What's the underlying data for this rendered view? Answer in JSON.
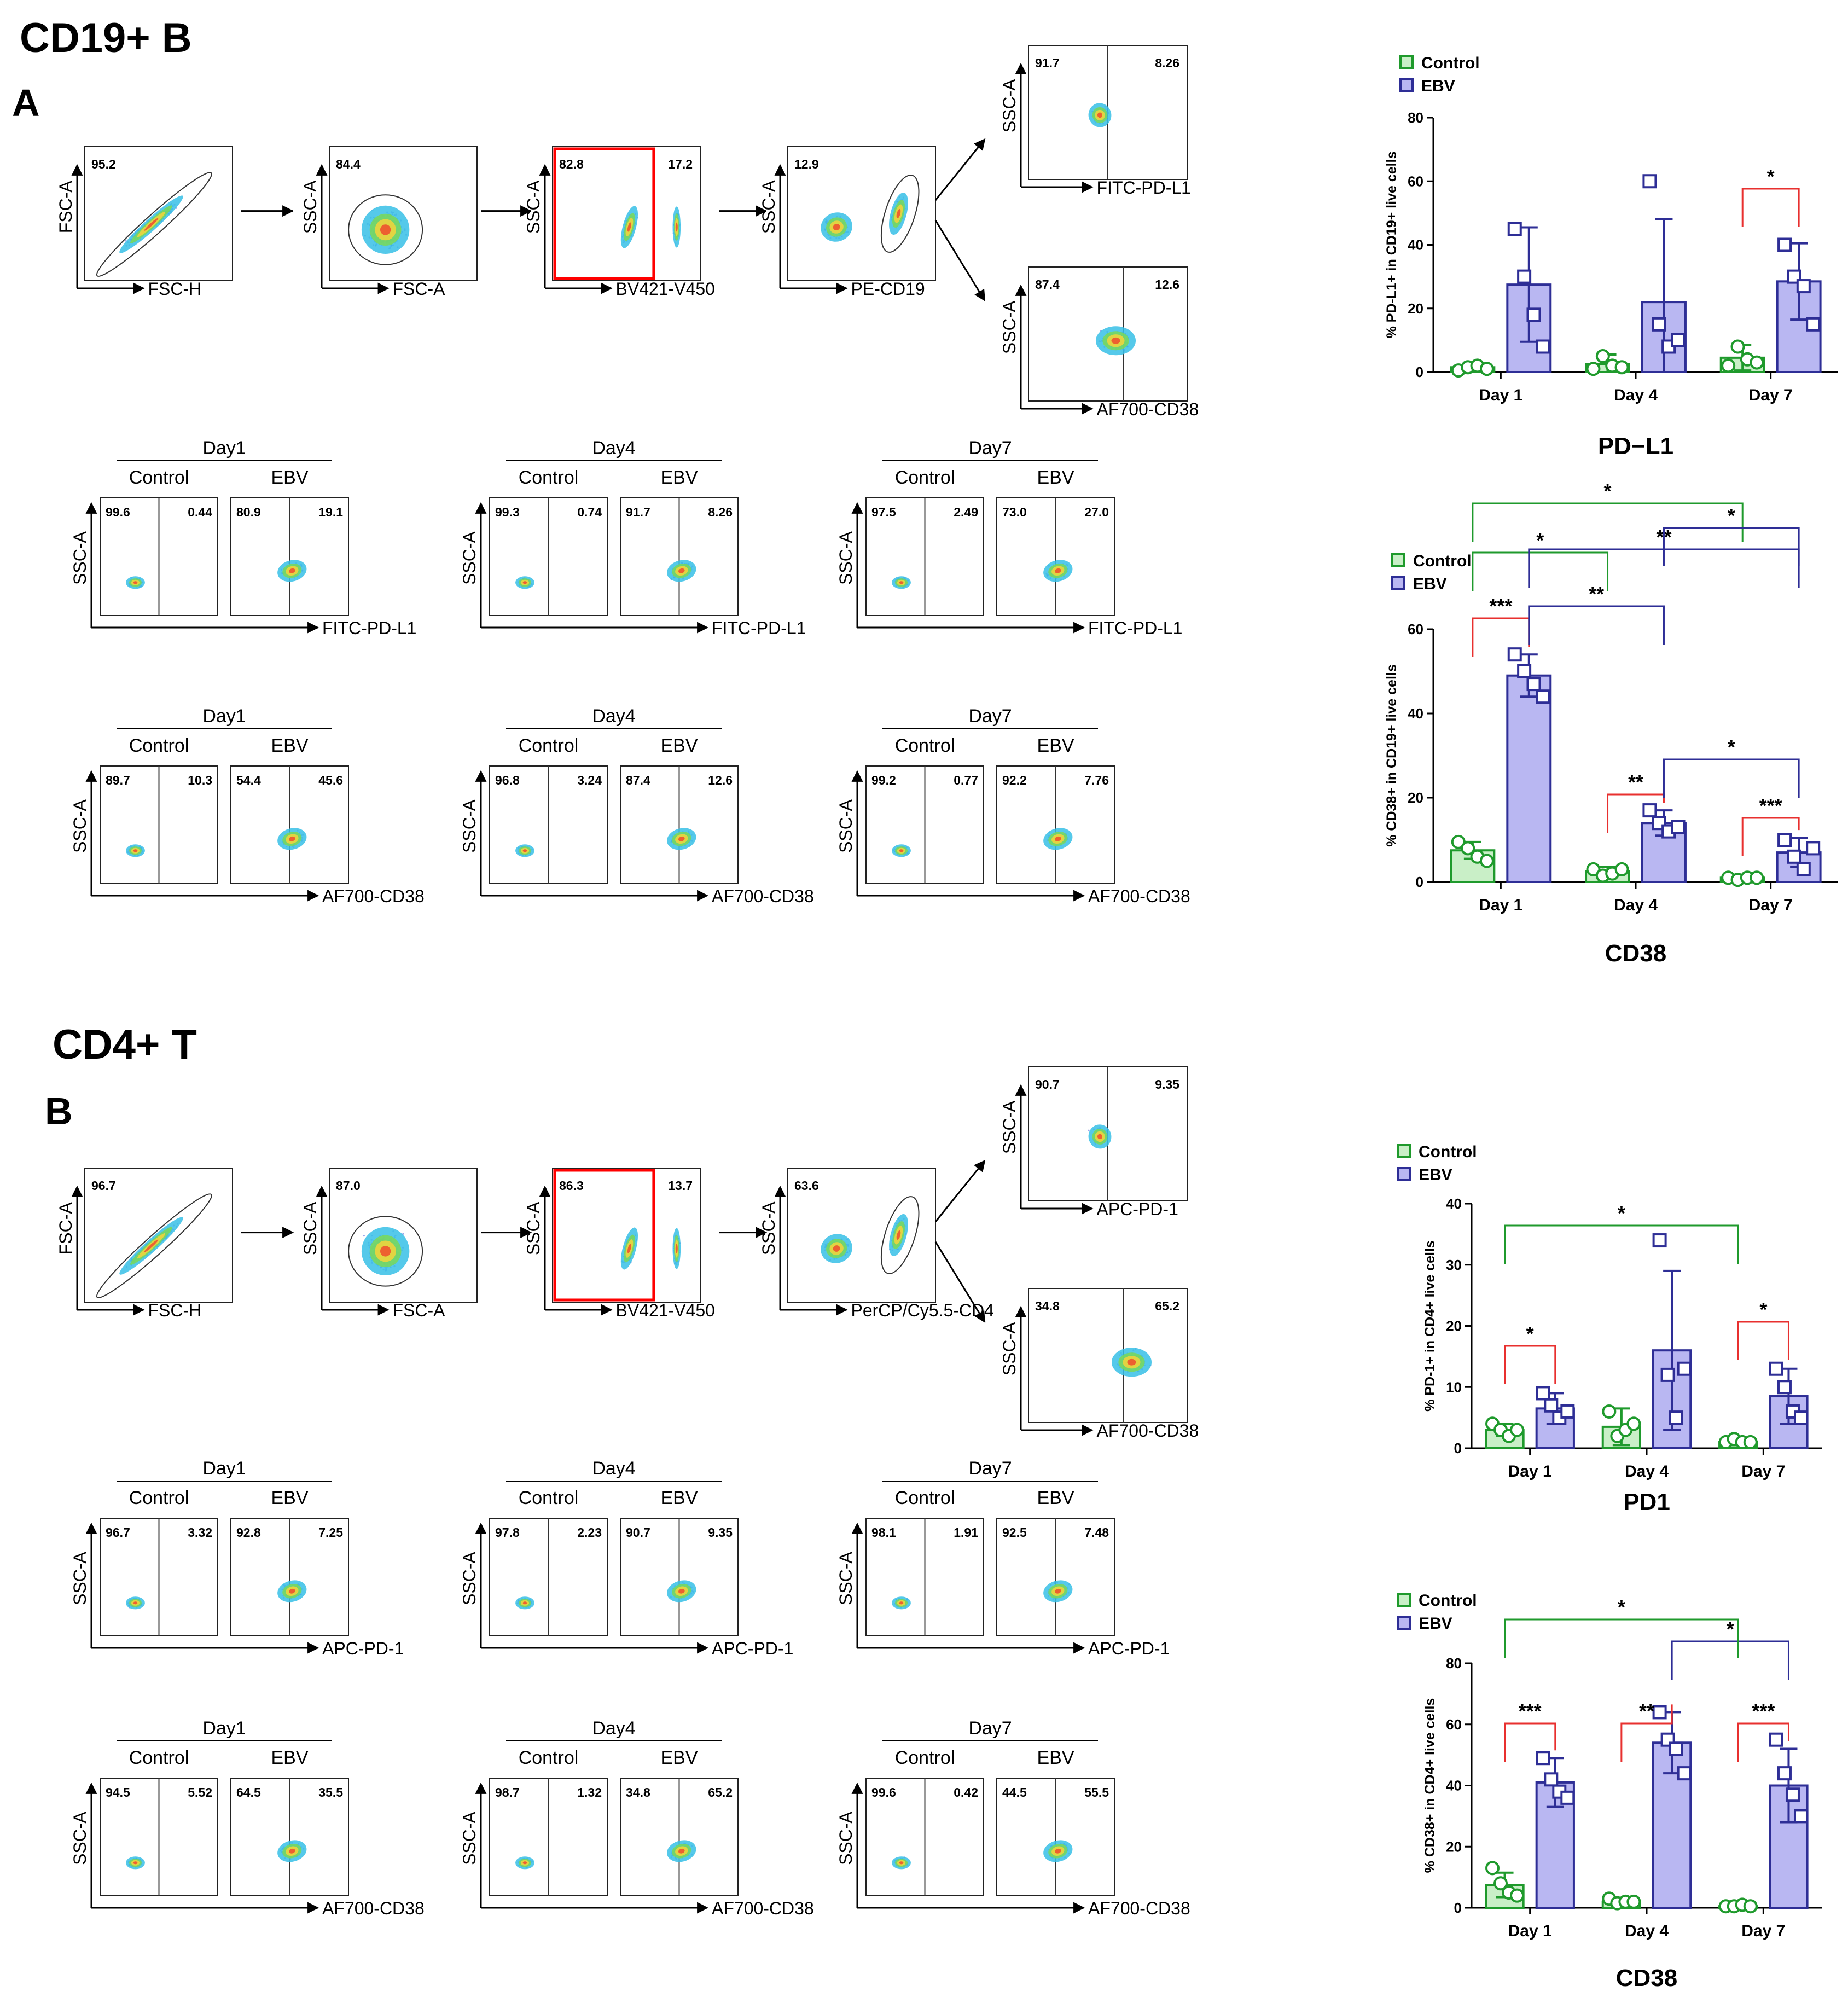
{
  "colors": {
    "control": "#1f9a2c",
    "ebv": "#2e2e96",
    "control_fill": "#c9efc7",
    "ebv_fill": "#b9b7f2",
    "sig_red": "#e8302f",
    "gate_red": "#ff0000"
  },
  "sections": [
    {
      "id": "A",
      "title": "CD19+ B",
      "label": "A"
    },
    {
      "id": "B",
      "title": "CD4+ T",
      "label": "B"
    }
  ],
  "gating": {
    "A": {
      "plots": [
        {
          "x_label": "FSC-H",
          "y_label": "FSC-A",
          "values": [
            "95.2"
          ]
        },
        {
          "x_label": "FSC-A",
          "y_label": "SSC-A",
          "values": [
            "84.4"
          ]
        },
        {
          "x_label": "BV421-V450",
          "y_label": "SSC-A",
          "values": [
            "82.8",
            "17.2"
          ]
        },
        {
          "x_label": "PE-CD19",
          "y_label": "SSC-A",
          "values": [
            "12.9"
          ]
        },
        {
          "x_label": "FITC-PD-L1",
          "y_label": "SSC-A",
          "values": [
            "91.7",
            "8.26"
          ]
        },
        {
          "x_label": "AF700-CD38",
          "y_label": "SSC-A",
          "values": [
            "87.4",
            "12.6"
          ]
        }
      ]
    },
    "B": {
      "plots": [
        {
          "x_label": "FSC-H",
          "y_label": "FSC-A",
          "values": [
            "96.7"
          ]
        },
        {
          "x_label": "FSC-A",
          "y_label": "SSC-A",
          "values": [
            "87.0"
          ]
        },
        {
          "x_label": "BV421-V450",
          "y_label": "SSC-A",
          "values": [
            "86.3",
            "13.7"
          ]
        },
        {
          "x_label": "PerCP/Cy5.5-CD4",
          "y_label": "SSC-A",
          "values": [
            "63.6"
          ]
        },
        {
          "x_label": "APC-PD-1",
          "y_label": "SSC-A",
          "values": [
            "90.7",
            "9.35"
          ]
        },
        {
          "x_label": "AF700-CD38",
          "y_label": "SSC-A",
          "values": [
            "34.8",
            "65.2"
          ]
        }
      ]
    }
  },
  "panel_rows": {
    "A": [
      {
        "x_label": "FITC-PD-L1",
        "y_label": "SSC-A",
        "days": [
          {
            "day": "Day1",
            "control": [
              "99.6",
              "0.44"
            ],
            "ebv": [
              "80.9",
              "19.1"
            ]
          },
          {
            "day": "Day4",
            "control": [
              "99.3",
              "0.74"
            ],
            "ebv": [
              "91.7",
              "8.26"
            ]
          },
          {
            "day": "Day7",
            "control": [
              "97.5",
              "2.49"
            ],
            "ebv": [
              "73.0",
              "27.0"
            ]
          }
        ]
      },
      {
        "x_label": "AF700-CD38",
        "y_label": "SSC-A",
        "days": [
          {
            "day": "Day1",
            "control": [
              "89.7",
              "10.3"
            ],
            "ebv": [
              "54.4",
              "45.6"
            ]
          },
          {
            "day": "Day4",
            "control": [
              "96.8",
              "3.24"
            ],
            "ebv": [
              "87.4",
              "12.6"
            ]
          },
          {
            "day": "Day7",
            "control": [
              "99.2",
              "0.77"
            ],
            "ebv": [
              "92.2",
              "7.76"
            ]
          }
        ]
      }
    ],
    "B": [
      {
        "x_label": "APC-PD-1",
        "y_label": "SSC-A",
        "days": [
          {
            "day": "Day1",
            "control": [
              "96.7",
              "3.32"
            ],
            "ebv": [
              "92.8",
              "7.25"
            ]
          },
          {
            "day": "Day4",
            "control": [
              "97.8",
              "2.23"
            ],
            "ebv": [
              "90.7",
              "9.35"
            ]
          },
          {
            "day": "Day7",
            "control": [
              "98.1",
              "1.91"
            ],
            "ebv": [
              "92.5",
              "7.48"
            ]
          }
        ]
      },
      {
        "x_label": "AF700-CD38",
        "y_label": "SSC-A",
        "days": [
          {
            "day": "Day1",
            "control": [
              "94.5",
              "5.52"
            ],
            "ebv": [
              "64.5",
              "35.5"
            ]
          },
          {
            "day": "Day4",
            "control": [
              "98.7",
              "1.32"
            ],
            "ebv": [
              "34.8",
              "65.2"
            ]
          },
          {
            "day": "Day7",
            "control": [
              "99.6",
              "0.42"
            ],
            "ebv": [
              "44.5",
              "55.5"
            ]
          }
        ]
      }
    ],
    "group_labels": {
      "control": "Control",
      "ebv": "EBV"
    }
  },
  "chart_data": [
    {
      "type": "bar",
      "title": "PD−L1",
      "ylabel": "% PD-L1+ in CD19+ live cells",
      "ylim": [
        0,
        80
      ],
      "yticks": [
        0,
        20,
        40,
        60,
        80
      ],
      "categories": [
        "Day 1",
        "Day 4",
        "Day 7"
      ],
      "legend": [
        "Control",
        "EBV"
      ],
      "series": [
        {
          "name": "Control",
          "values": [
            1.5,
            2.5,
            4.5
          ],
          "errors": [
            1,
            3,
            4
          ],
          "points": [
            [
              0.5,
              1.5,
              2,
              1
            ],
            [
              1,
              5,
              2,
              1.5
            ],
            [
              2,
              8,
              4,
              3
            ]
          ]
        },
        {
          "name": "EBV",
          "values": [
            27.5,
            22,
            28.5
          ],
          "errors": [
            18,
            26,
            12
          ],
          "points": [
            [
              45,
              30,
              18,
              8
            ],
            [
              60,
              15,
              8,
              10
            ],
            [
              40,
              30,
              27,
              15
            ]
          ]
        }
      ],
      "significance": [
        {
          "from": [
            2,
            "Control"
          ],
          "to": [
            2,
            "EBV"
          ],
          "label": "*",
          "color": "red"
        }
      ]
    },
    {
      "type": "bar",
      "title": "CD38",
      "ylabel": "% CD38+ in CD19+ live cells",
      "ylim": [
        0,
        60
      ],
      "yticks": [
        0,
        20,
        40,
        60
      ],
      "categories": [
        "Day 1",
        "Day 4",
        "Day 7"
      ],
      "legend": [
        "Control",
        "EBV"
      ],
      "series": [
        {
          "name": "Control",
          "values": [
            7.5,
            2.5,
            1
          ],
          "errors": [
            2,
            1,
            0.5
          ],
          "points": [
            [
              9.5,
              8,
              6,
              5
            ],
            [
              3,
              1.5,
              2,
              3
            ],
            [
              1,
              0.5,
              1,
              1
            ]
          ]
        },
        {
          "name": "EBV",
          "values": [
            49,
            14,
            7
          ],
          "errors": [
            5,
            3,
            3.5
          ],
          "points": [
            [
              54,
              50,
              47,
              44
            ],
            [
              17,
              14,
              12,
              13
            ],
            [
              10,
              6,
              3,
              8
            ]
          ]
        }
      ],
      "significance": [
        {
          "from": [
            0,
            "Control"
          ],
          "to": [
            0,
            "EBV"
          ],
          "label": "***",
          "color": "red"
        },
        {
          "from": [
            1,
            "Control"
          ],
          "to": [
            1,
            "EBV"
          ],
          "label": "**",
          "color": "red"
        },
        {
          "from": [
            2,
            "Control"
          ],
          "to": [
            2,
            "EBV"
          ],
          "label": "***",
          "color": "red"
        },
        {
          "from": [
            0,
            "EBV"
          ],
          "to": [
            1,
            "EBV"
          ],
          "label": "**",
          "color": "blue"
        },
        {
          "from": [
            1,
            "EBV"
          ],
          "to": [
            2,
            "EBV"
          ],
          "label": "*",
          "color": "blue"
        },
        {
          "from": [
            0,
            "Control"
          ],
          "to": [
            1,
            "Control"
          ],
          "label": "*",
          "color": "green"
        },
        {
          "from": [
            0,
            "Control"
          ],
          "to": [
            2,
            "Control"
          ],
          "label": "*",
          "color": "green"
        },
        {
          "from": [
            0,
            "EBV"
          ],
          "to": [
            2,
            "EBV"
          ],
          "label": "**",
          "color": "blue"
        },
        {
          "from": [
            1,
            "EBV"
          ],
          "to": [
            2,
            "EBV"
          ],
          "label": "*",
          "color": "blue"
        }
      ]
    },
    {
      "type": "bar",
      "title": "PD1",
      "ylabel": "% PD-1+ in CD4+ live cells",
      "ylim": [
        0,
        40
      ],
      "yticks": [
        0,
        10,
        20,
        30,
        40
      ],
      "categories": [
        "Day 1",
        "Day 4",
        "Day 7"
      ],
      "legend": [
        "Control",
        "EBV"
      ],
      "series": [
        {
          "name": "Control",
          "values": [
            3,
            3.5,
            1
          ],
          "errors": [
            1,
            3,
            0.5
          ],
          "points": [
            [
              4,
              3,
              2,
              3
            ],
            [
              6,
              2,
              3,
              4
            ],
            [
              1,
              1.5,
              1,
              1
            ]
          ]
        },
        {
          "name": "EBV",
          "values": [
            6.5,
            16,
            8.5
          ],
          "errors": [
            2.5,
            13,
            4.5
          ],
          "points": [
            [
              9,
              7,
              5,
              6
            ],
            [
              34,
              12,
              5,
              13
            ],
            [
              13,
              10,
              6,
              5
            ]
          ]
        }
      ],
      "significance": [
        {
          "from": [
            0,
            "Control"
          ],
          "to": [
            0,
            "EBV"
          ],
          "label": "*",
          "color": "red"
        },
        {
          "from": [
            2,
            "Control"
          ],
          "to": [
            2,
            "EBV"
          ],
          "label": "*",
          "color": "red"
        },
        {
          "from": [
            0,
            "Control"
          ],
          "to": [
            2,
            "Control"
          ],
          "label": "*",
          "color": "green"
        }
      ]
    },
    {
      "type": "bar",
      "title": "CD38",
      "ylabel": "% CD38+ in CD4+ live cells",
      "ylim": [
        0,
        80
      ],
      "yticks": [
        0,
        20,
        40,
        60,
        80
      ],
      "categories": [
        "Day 1",
        "Day 4",
        "Day 7"
      ],
      "legend": [
        "Control",
        "EBV"
      ],
      "series": [
        {
          "name": "Control",
          "values": [
            7.5,
            2,
            0.5
          ],
          "errors": [
            4,
            1,
            0.3
          ],
          "points": [
            [
              13,
              8,
              5,
              4
            ],
            [
              3,
              1.5,
              2,
              2
            ],
            [
              0.5,
              0.5,
              1,
              0.5
            ]
          ]
        },
        {
          "name": "EBV",
          "values": [
            41,
            54,
            40
          ],
          "errors": [
            8,
            10,
            12
          ],
          "points": [
            [
              49,
              42,
              38,
              36
            ],
            [
              64,
              55,
              52,
              44
            ],
            [
              55,
              44,
              37,
              30
            ]
          ]
        }
      ],
      "significance": [
        {
          "from": [
            0,
            "Control"
          ],
          "to": [
            0,
            "EBV"
          ],
          "label": "***",
          "color": "red"
        },
        {
          "from": [
            1,
            "Control"
          ],
          "to": [
            1,
            "EBV"
          ],
          "label": "**",
          "color": "red"
        },
        {
          "from": [
            2,
            "Control"
          ],
          "to": [
            2,
            "EBV"
          ],
          "label": "***",
          "color": "red"
        },
        {
          "from": [
            1,
            "EBV"
          ],
          "to": [
            2,
            "EBV"
          ],
          "label": "*",
          "color": "blue"
        },
        {
          "from": [
            0,
            "Control"
          ],
          "to": [
            2,
            "Control"
          ],
          "label": "*",
          "color": "green"
        }
      ]
    }
  ]
}
